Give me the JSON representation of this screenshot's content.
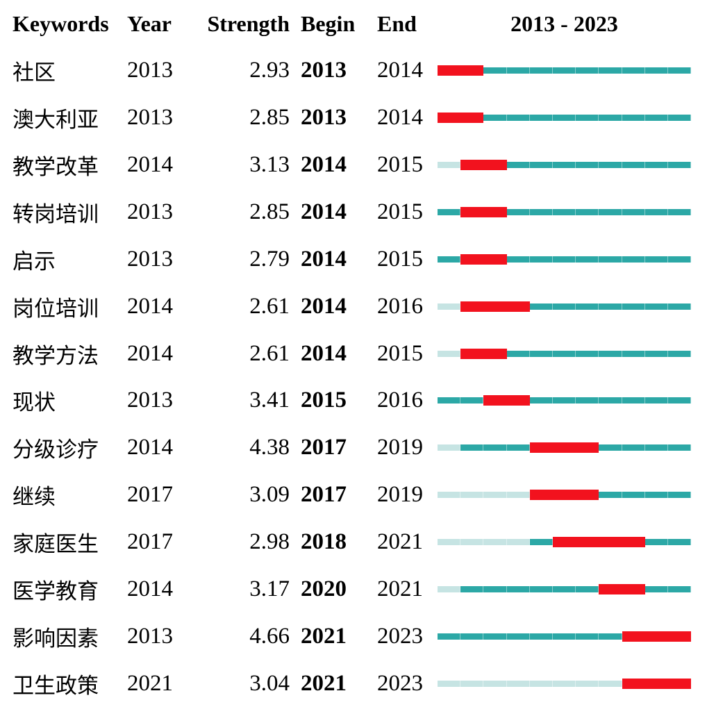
{
  "header": {
    "keywords": "Keywords",
    "year": "Year",
    "strength": "Strength",
    "begin": "Begin",
    "end": "End",
    "timeline": "2013 - 2023"
  },
  "timeline": {
    "start_year": 2013,
    "end_year": 2023
  },
  "colors": {
    "burst": "#F2121E",
    "active": "#2CA8A6",
    "inactive": "#C6E4E3"
  },
  "rows": [
    {
      "keyword": "社区",
      "year": "2013",
      "strength": "2.93",
      "begin": "2013",
      "end": "2014"
    },
    {
      "keyword": "澳大利亚",
      "year": "2013",
      "strength": "2.85",
      "begin": "2013",
      "end": "2014"
    },
    {
      "keyword": "教学改革",
      "year": "2014",
      "strength": "3.13",
      "begin": "2014",
      "end": "2015"
    },
    {
      "keyword": "转岗培训",
      "year": "2013",
      "strength": "2.85",
      "begin": "2014",
      "end": "2015"
    },
    {
      "keyword": "启示",
      "year": "2013",
      "strength": "2.79",
      "begin": "2014",
      "end": "2015"
    },
    {
      "keyword": "岗位培训",
      "year": "2014",
      "strength": "2.61",
      "begin": "2014",
      "end": "2016"
    },
    {
      "keyword": "教学方法",
      "year": "2014",
      "strength": "2.61",
      "begin": "2014",
      "end": "2015"
    },
    {
      "keyword": "现状",
      "year": "2013",
      "strength": "3.41",
      "begin": "2015",
      "end": "2016"
    },
    {
      "keyword": "分级诊疗",
      "year": "2014",
      "strength": "4.38",
      "begin": "2017",
      "end": "2019"
    },
    {
      "keyword": "继续",
      "year": "2017",
      "strength": "3.09",
      "begin": "2017",
      "end": "2019"
    },
    {
      "keyword": "家庭医生",
      "year": "2017",
      "strength": "2.98",
      "begin": "2018",
      "end": "2021"
    },
    {
      "keyword": "医学教育",
      "year": "2014",
      "strength": "3.17",
      "begin": "2020",
      "end": "2021"
    },
    {
      "keyword": "影响因素",
      "year": "2013",
      "strength": "4.66",
      "begin": "2021",
      "end": "2023"
    },
    {
      "keyword": "卫生政策",
      "year": "2021",
      "strength": "3.04",
      "begin": "2021",
      "end": "2023"
    }
  ],
  "chart_data": {
    "type": "table",
    "title": "2013 - 2023",
    "columns": [
      "Keywords",
      "Year",
      "Strength",
      "Begin",
      "End"
    ],
    "rows": [
      [
        "社区",
        2013,
        2.93,
        2013,
        2014
      ],
      [
        "澳大利亚",
        2013,
        2.85,
        2013,
        2014
      ],
      [
        "教学改革",
        2014,
        3.13,
        2014,
        2015
      ],
      [
        "转岗培训",
        2013,
        2.85,
        2014,
        2015
      ],
      [
        "启示",
        2013,
        2.79,
        2014,
        2015
      ],
      [
        "岗位培训",
        2014,
        2.61,
        2014,
        2016
      ],
      [
        "教学方法",
        2014,
        2.61,
        2014,
        2015
      ],
      [
        "现状",
        2013,
        3.41,
        2015,
        2016
      ],
      [
        "分级诊疗",
        2014,
        4.38,
        2017,
        2019
      ],
      [
        "继续",
        2017,
        3.09,
        2017,
        2019
      ],
      [
        "家庭医生",
        2017,
        2.98,
        2018,
        2021
      ],
      [
        "医学教育",
        2014,
        3.17,
        2020,
        2021
      ],
      [
        "影响因素",
        2013,
        4.66,
        2021,
        2023
      ],
      [
        "卫生政策",
        2021,
        3.04,
        2021,
        2023
      ]
    ],
    "timeline": {
      "axis_range": [
        2013,
        2023
      ],
      "bar_encoding": {
        "red": "burst period (Begin to End inclusive)",
        "dark_teal": "years keyword present outside burst",
        "light_teal": "years before keyword first appearance"
      }
    }
  }
}
